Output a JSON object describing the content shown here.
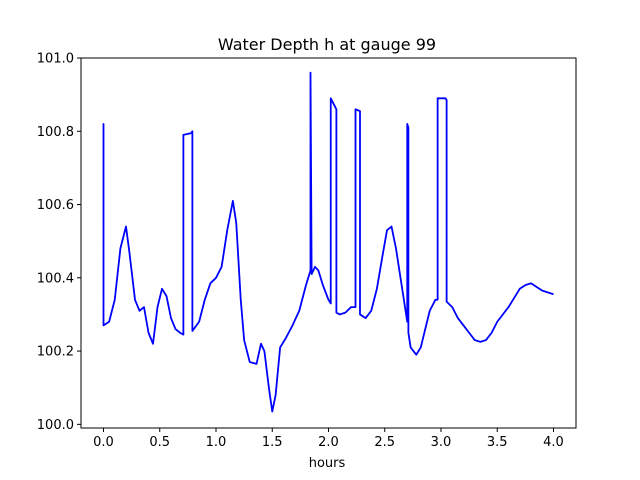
{
  "chart_data": {
    "type": "line",
    "title": "Water Depth h at gauge 99",
    "xlabel": "hours",
    "ylabel": "",
    "xlim": [
      -0.2,
      4.2
    ],
    "ylim": [
      99.99,
      101.0
    ],
    "xticks": [
      0.0,
      0.5,
      1.0,
      1.5,
      2.0,
      2.5,
      3.0,
      3.5,
      4.0
    ],
    "xtick_labels": [
      "0.0",
      "0.5",
      "1.0",
      "1.5",
      "2.0",
      "2.5",
      "3.0",
      "3.5",
      "4.0"
    ],
    "yticks": [
      100.0,
      100.2,
      100.4,
      100.6,
      100.8,
      101.0
    ],
    "ytick_labels": [
      "100.0",
      "100.2",
      "100.4",
      "100.6",
      "100.8",
      "101.0"
    ],
    "grid": false,
    "series": [
      {
        "color": "#0000ff",
        "x": [
          0.0,
          0.0,
          0.0,
          0.05,
          0.1,
          0.15,
          0.2,
          0.23,
          0.28,
          0.32,
          0.36,
          0.4,
          0.44,
          0.48,
          0.52,
          0.56,
          0.6,
          0.64,
          0.68,
          0.71,
          0.71,
          0.78,
          0.79,
          0.79,
          0.85,
          0.9,
          0.95,
          1.0,
          1.05,
          1.1,
          1.15,
          1.18,
          1.22,
          1.25,
          1.3,
          1.36,
          1.4,
          1.43,
          1.47,
          1.5,
          1.53,
          1.57,
          1.62,
          1.68,
          1.74,
          1.8,
          1.84,
          1.84,
          1.85,
          1.88,
          1.91,
          1.95,
          2.0,
          2.02,
          2.02,
          2.07,
          2.07,
          2.1,
          2.15,
          2.2,
          2.24,
          2.24,
          2.28,
          2.28,
          2.33,
          2.38,
          2.43,
          2.48,
          2.52,
          2.56,
          2.6,
          2.65,
          2.7,
          2.7,
          2.71,
          2.71,
          2.73,
          2.78,
          2.82,
          2.86,
          2.9,
          2.95,
          2.97,
          2.97,
          3.04,
          3.05,
          3.05,
          3.1,
          3.15,
          3.2,
          3.25,
          3.3,
          3.35,
          3.4,
          3.45,
          3.5,
          3.6,
          3.7,
          3.75,
          3.8,
          3.85,
          3.9,
          4.0
        ],
        "y": [
          100.27,
          100.82,
          100.27,
          100.28,
          100.34,
          100.48,
          100.54,
          100.47,
          100.34,
          100.31,
          100.32,
          100.25,
          100.22,
          100.32,
          100.37,
          100.35,
          100.29,
          100.26,
          100.25,
          100.245,
          100.79,
          100.795,
          100.8,
          100.255,
          100.28,
          100.34,
          100.385,
          100.4,
          100.43,
          100.53,
          100.61,
          100.55,
          100.34,
          100.23,
          100.17,
          100.165,
          100.22,
          100.2,
          100.1,
          100.035,
          100.08,
          100.21,
          100.235,
          100.27,
          100.31,
          100.38,
          100.42,
          100.96,
          100.41,
          100.43,
          100.42,
          100.38,
          100.34,
          100.33,
          100.89,
          100.86,
          100.305,
          100.3,
          100.305,
          100.32,
          100.32,
          100.86,
          100.855,
          100.3,
          100.29,
          100.31,
          100.37,
          100.46,
          100.53,
          100.54,
          100.48,
          100.38,
          100.28,
          100.82,
          100.81,
          100.25,
          100.21,
          100.19,
          100.21,
          100.26,
          100.31,
          100.34,
          100.34,
          100.89,
          100.89,
          100.885,
          100.335,
          100.32,
          100.29,
          100.27,
          100.25,
          100.23,
          100.225,
          100.23,
          100.25,
          100.28,
          100.32,
          100.37,
          100.38,
          100.385,
          100.375,
          100.365,
          100.355
        ]
      }
    ]
  }
}
